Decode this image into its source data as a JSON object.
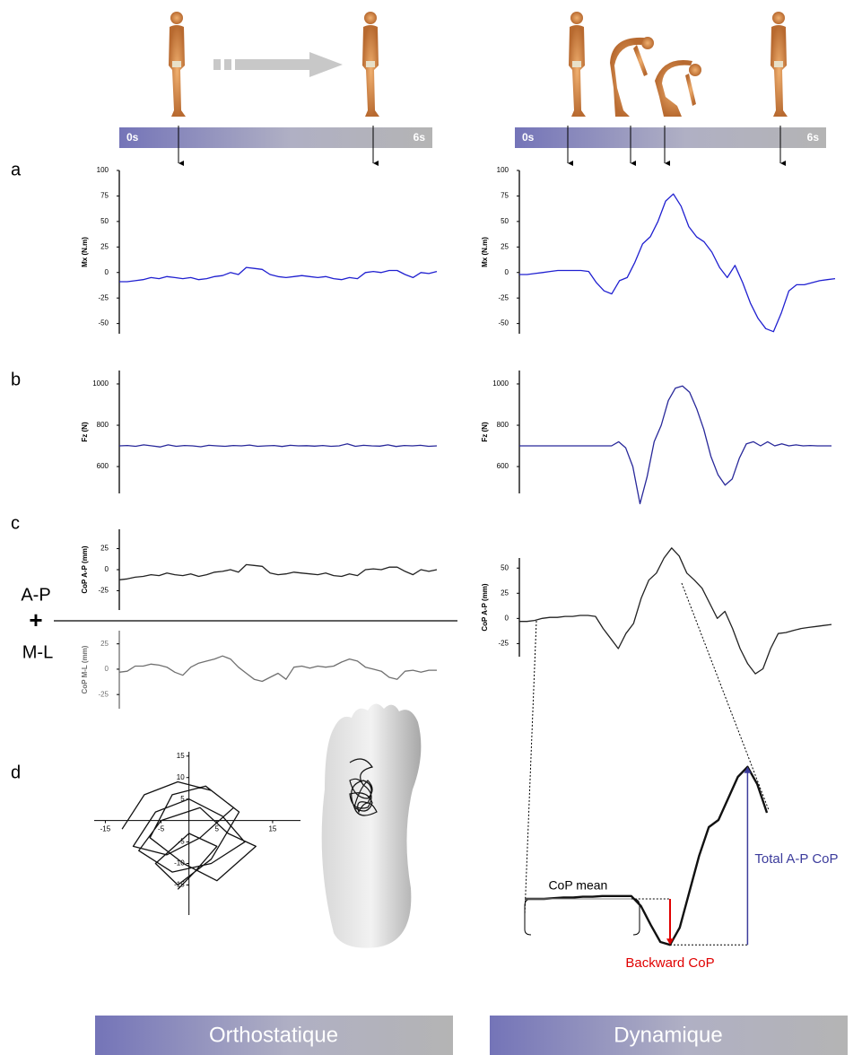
{
  "figure": {
    "panel_labels": [
      "a",
      "b",
      "c",
      "d"
    ],
    "time_start": "0s",
    "time_end": "6s",
    "ap_label": "A-P",
    "plus": "+",
    "ml_label": "M-L",
    "conditions": [
      "Orthostatique",
      "Dynamique"
    ]
  },
  "chart_data": [
    {
      "type": "line",
      "ylabel": "Mx (N.m)",
      "color": "#2020d0",
      "ylim": [
        -60,
        100
      ],
      "yticks": [
        -50,
        -25,
        0,
        25,
        50,
        75,
        100
      ],
      "values": [
        -9,
        -9,
        -8,
        -7,
        -5,
        -6,
        -4,
        -5,
        -6,
        -5,
        -7,
        -6,
        -4,
        -3,
        0,
        -2,
        5,
        4,
        3,
        -2,
        -4,
        -5,
        -4,
        -3,
        -4,
        -5,
        -4,
        -6,
        -7,
        -5,
        -6,
        0,
        1,
        0,
        2,
        2,
        -2,
        -5,
        0,
        -1,
        1
      ]
    },
    {
      "type": "line",
      "ylabel": "Mx (N.m)",
      "color": "#2020d0",
      "ylim": [
        -60,
        100
      ],
      "yticks": [
        -50,
        -25,
        0,
        25,
        50,
        75,
        100
      ],
      "values": [
        -2,
        -2,
        -1,
        0,
        1,
        2,
        2,
        2,
        2,
        1,
        -10,
        -18,
        -21,
        -8,
        -5,
        10,
        28,
        35,
        50,
        70,
        77,
        65,
        45,
        35,
        30,
        20,
        5,
        -5,
        7,
        -10,
        -30,
        -45,
        -55,
        -58,
        -40,
        -18,
        -12,
        -12,
        -10,
        -8,
        -7,
        -6
      ]
    },
    {
      "type": "line",
      "ylabel": "Fz (N)",
      "color": "#28289a",
      "ylim": [
        470,
        1065
      ],
      "yticks": [
        600,
        800,
        1000
      ],
      "values": [
        700,
        702,
        698,
        705,
        700,
        695,
        705,
        698,
        702,
        700,
        696,
        703,
        700,
        698,
        702,
        700,
        704,
        698,
        700,
        702,
        697,
        703,
        700,
        701,
        699,
        702,
        698,
        700,
        710,
        698,
        703,
        700,
        699,
        705,
        697,
        702,
        700,
        703,
        698,
        700
      ]
    },
    {
      "type": "line",
      "ylabel": "Fz (N)",
      "color": "#28289a",
      "ylim": [
        470,
        1065
      ],
      "yticks": [
        600,
        800,
        1000
      ],
      "values": [
        700,
        700,
        700,
        700,
        700,
        700,
        700,
        700,
        700,
        700,
        700,
        700,
        700,
        700,
        720,
        690,
        600,
        420,
        550,
        720,
        800,
        920,
        980,
        990,
        960,
        880,
        780,
        650,
        560,
        510,
        540,
        640,
        710,
        720,
        700,
        720,
        700,
        710,
        700,
        705,
        700,
        702,
        700,
        700,
        700
      ]
    },
    {
      "type": "line",
      "ylabel": "CoP A-P (mm)",
      "color": "#222222",
      "ylim": [
        -48,
        48
      ],
      "yticks": [
        -25,
        0,
        25
      ],
      "values": [
        -12,
        -11,
        -9,
        -8,
        -6,
        -7,
        -4,
        -6,
        -7,
        -5,
        -8,
        -6,
        -3,
        -2,
        0,
        -3,
        6,
        5,
        4,
        -4,
        -6,
        -5,
        -3,
        -4,
        -5,
        -6,
        -4,
        -7,
        -8,
        -5,
        -7,
        0,
        1,
        0,
        3,
        3,
        -2,
        -6,
        0,
        -2,
        0
      ]
    },
    {
      "type": "line",
      "ylabel": "CoP M-L (mm)",
      "color": "#707070",
      "ylim": [
        -39,
        38
      ],
      "yticks": [
        -25,
        0,
        25
      ],
      "values": [
        -3,
        -2,
        3,
        3,
        5,
        4,
        2,
        -3,
        -6,
        2,
        6,
        8,
        10,
        13,
        10,
        2,
        -4,
        -10,
        -12,
        -8,
        -4,
        -10,
        2,
        3,
        1,
        3,
        2,
        3,
        7,
        10,
        8,
        2,
        0,
        -2,
        -8,
        -10,
        -2,
        -1,
        -3,
        -1,
        -1
      ]
    },
    {
      "type": "line",
      "ylabel": "CoP A-P (mm)",
      "color": "#222222",
      "ylim": [
        -38,
        60
      ],
      "yticks": [
        -25,
        0,
        25,
        50
      ],
      "values": [
        -3,
        -3,
        -2,
        0,
        1,
        1,
        2,
        2,
        3,
        3,
        2,
        -10,
        -20,
        -30,
        -15,
        -5,
        20,
        38,
        45,
        60,
        70,
        62,
        45,
        38,
        30,
        15,
        0,
        7,
        -10,
        -30,
        -45,
        -55,
        -50,
        -30,
        -15,
        -14,
        -12,
        -10,
        -9,
        -8,
        -7,
        -6
      ]
    },
    {
      "type": "line",
      "color": "#111111",
      "xlim": [
        -17,
        20
      ],
      "ylim": [
        -22,
        16
      ],
      "xticks": [
        -15,
        -5,
        5,
        15
      ],
      "yticks": [
        -15,
        -10,
        -5,
        5,
        10,
        15
      ],
      "x": [
        -12,
        -8,
        -2,
        4,
        8,
        2,
        -4,
        -10,
        -6,
        0,
        6,
        10,
        4,
        -3,
        -9,
        -5,
        2,
        7,
        12,
        5,
        -1,
        -7,
        -3,
        3,
        9,
        4,
        -2,
        -6,
        0,
        5,
        1,
        -2
      ],
      "values": [
        -2,
        6,
        9,
        7,
        3,
        -4,
        -8,
        -6,
        2,
        5,
        1,
        -5,
        -10,
        -12,
        -7,
        0,
        3,
        -3,
        -6,
        -14,
        -10,
        -4,
        6,
        8,
        2,
        -9,
        -15,
        -10,
        -3,
        -6,
        -12,
        -16
      ]
    },
    {
      "type": "line",
      "color": "#111111",
      "ylim": [
        -35,
        95
      ],
      "values": [
        0,
        0,
        0,
        0.5,
        1,
        1,
        1.5,
        1.5,
        2,
        2,
        2,
        2,
        -5,
        -18,
        -30,
        -32,
        -20,
        5,
        30,
        50,
        55,
        70,
        85,
        92,
        80,
        60
      ],
      "annotations": [
        {
          "text": "CoP mean"
        },
        {
          "text": "Backward CoP",
          "color": "#e00000"
        },
        {
          "text": "Total A-P CoP",
          "color": "#3c3c9c"
        }
      ]
    }
  ]
}
